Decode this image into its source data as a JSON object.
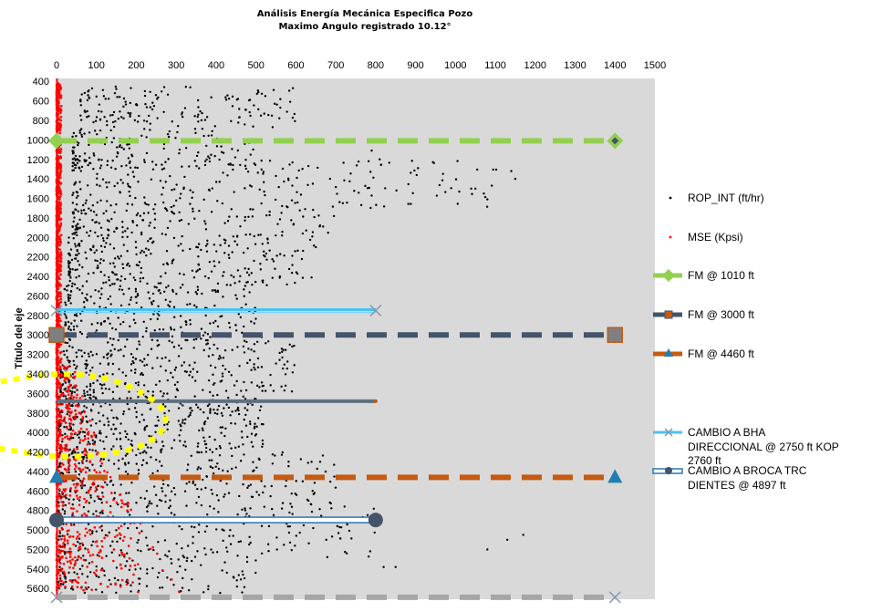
{
  "chart_data": {
    "type": "scatter",
    "title": "Análisis Energía Mecánica Especifica Pozo",
    "subtitle": "Maximo Angulo registrado 10.12°",
    "xlabel": "",
    "ylabel": "Título del eje",
    "xlim": [
      0,
      1500
    ],
    "ylim": [
      400,
      5700
    ],
    "y_reversed": true,
    "x_ticks": [
      0,
      100,
      200,
      300,
      400,
      500,
      600,
      700,
      800,
      900,
      1000,
      1100,
      1200,
      1300,
      1400,
      1500
    ],
    "y_ticks": [
      400,
      600,
      800,
      1000,
      1200,
      1400,
      1600,
      1800,
      2000,
      2200,
      2400,
      2600,
      2800,
      3000,
      3200,
      3400,
      3600,
      3800,
      4000,
      4200,
      4400,
      4600,
      4800,
      5000,
      5200,
      5400,
      5600
    ],
    "x_axis_position": "top",
    "grid": false,
    "plot_background": "#d9d9d9",
    "legend_position": "right",
    "scatter_series": [
      {
        "name": "ROP_INT (ft/hr)",
        "color": "#000000",
        "x_range": [
          0,
          1160
        ],
        "depth_range": [
          400,
          5650
        ]
      },
      {
        "name": "MSE (Kpsi)",
        "color": "#ff0000",
        "x_range": [
          0,
          330
        ],
        "depth_range": [
          400,
          5650
        ]
      }
    ],
    "lines": [
      {
        "name": "FM @ 1010 ft",
        "depth": 1010,
        "x": [
          0,
          1400
        ],
        "color": "#92d050",
        "dash": true,
        "marker": "diamond"
      },
      {
        "name": "CAMBIO A BHA DIRECCIONAL @ 2750 ft KOP 2760 ft",
        "depth": 2750,
        "x": [
          0,
          800
        ],
        "color": "#4bc2f0",
        "dash": false,
        "marker": "x"
      },
      {
        "name": "FM @ 3000 ft",
        "depth": 3000,
        "x": [
          0,
          1400
        ],
        "color": "#44546a",
        "dash": true,
        "marker": "square"
      },
      {
        "name": "",
        "depth": 3680,
        "x": [
          0,
          800
        ],
        "color": "#607080",
        "dash": false,
        "marker": "none"
      },
      {
        "name": "FM @ 4460 ft",
        "depth": 4460,
        "x": [
          0,
          1400
        ],
        "color": "#c55a11",
        "dash": true,
        "marker": "triangle"
      },
      {
        "name": "CAMBIO A BROCA TRC DIENTES @ 4897 ft",
        "depth": 4897,
        "x": [
          0,
          800
        ],
        "color": "#2e75b6",
        "dash": false,
        "marker": "circle"
      },
      {
        "name": "",
        "depth": 5690,
        "x": [
          0,
          1400
        ],
        "color": "#a6a6a6",
        "dash": true,
        "marker": "x"
      }
    ],
    "yellow_curve": {
      "color": "#ffff00",
      "points": [
        [
          -140,
          3480
        ],
        [
          0,
          3380
        ],
        [
          150,
          3450
        ],
        [
          260,
          3700
        ],
        [
          280,
          3900
        ],
        [
          240,
          4100
        ],
        [
          150,
          4220
        ],
        [
          0,
          4260
        ],
        [
          -150,
          4160
        ]
      ]
    }
  },
  "legend": {
    "rop": "ROP_INT (ft/hr)",
    "mse": "MSE (Kpsi)",
    "fm1010": "FM @ 1010 ft",
    "fm3000": "FM @ 3000 ft",
    "fm4460": "FM @ 4460 ft",
    "bha_line1": "CAMBIO A BHA",
    "bha_line2": "DIRECCIONAL @ 2750 ft KOP",
    "bha_line3": "2760 ft",
    "broca_line1": "CAMBIO A BROCA TRC",
    "broca_line2": "DIENTES @ 4897 ft"
  }
}
